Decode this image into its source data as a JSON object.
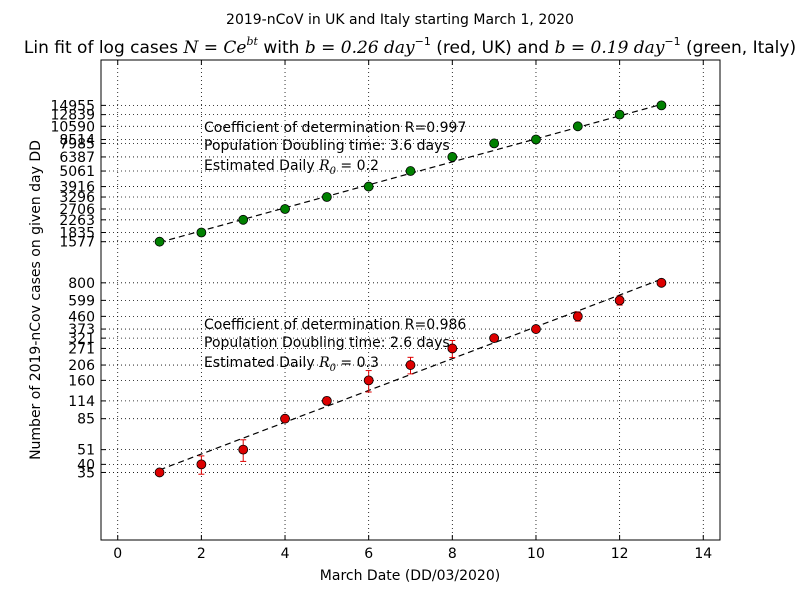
{
  "chart_data": {
    "type": "scatter",
    "title": "2019-nCoV in UK and Italy starting March 1, 2020",
    "subtitle": {
      "prefix": "Lin fit of log cases ",
      "formula": "N = Ce",
      "formula_sup": "bt",
      "mid1": " with ",
      "b_uk": "b = 0.26 day",
      "mid2": " (red, UK) and ",
      "b_it": "b = 0.19 day",
      "sup_unit": "−1",
      "suffix": " (green, Italy)"
    },
    "xlabel": "March Date (DD/03/2020)",
    "ylabel": "Number of 2019-nCov cases on given day DD",
    "xlim": [
      -0.4,
      14.4
    ],
    "ylim_log10": [
      1.06,
      4.5
    ],
    "y_scale": "log",
    "grid": true,
    "x_ticks": [
      0,
      2,
      4,
      6,
      8,
      10,
      12,
      14
    ],
    "y_tick_labels": [
      35,
      40,
      51,
      85,
      114,
      160,
      206,
      271,
      321,
      373,
      460,
      599,
      800,
      1577,
      1835,
      2263,
      2706,
      3296,
      3916,
      5061,
      6387,
      7985,
      8514,
      10590,
      12839,
      14955
    ],
    "series": [
      {
        "key": "italy",
        "color": "#008000",
        "x": [
          1,
          2,
          3,
          4,
          5,
          6,
          7,
          8,
          9,
          10,
          11,
          12,
          13
        ],
        "y": [
          1577,
          1835,
          2263,
          2706,
          3296,
          3916,
          5061,
          6387,
          7985,
          8514,
          10590,
          12839,
          14955
        ],
        "err": [
          0,
          0,
          0,
          0,
          0,
          0,
          0,
          0,
          350,
          0,
          0,
          0,
          0
        ],
        "fit": {
          "x": [
            1,
            13
          ],
          "y": [
            1560,
            15200
          ]
        },
        "annotations": {
          "r2": "Coefficient of determination R=0.997",
          "doubling": "Population Doubling time: 3.6 days",
          "r0_prefix": "Estimated Daily ",
          "r0_value": " = 0.2"
        }
      },
      {
        "key": "uk",
        "color": "#dd0000",
        "x": [
          1,
          2,
          3,
          4,
          5,
          6,
          7,
          8,
          9,
          10,
          11,
          12,
          13
        ],
        "y": [
          35,
          40,
          51,
          85,
          114,
          160,
          206,
          271,
          321,
          373,
          460,
          599,
          800
        ],
        "err": [
          0,
          6,
          9,
          0,
          7,
          28,
          28,
          38,
          0,
          0,
          35,
          45,
          0
        ],
        "fit": {
          "x": [
            1,
            13
          ],
          "y": [
            36.5,
            850
          ]
        },
        "annotations": {
          "r2": "Coefficient of determination R=0.986",
          "doubling": "Population Doubling time: 2.6 days",
          "r0_prefix": "Estimated Daily ",
          "r0_value": " = 0.3"
        }
      }
    ]
  }
}
